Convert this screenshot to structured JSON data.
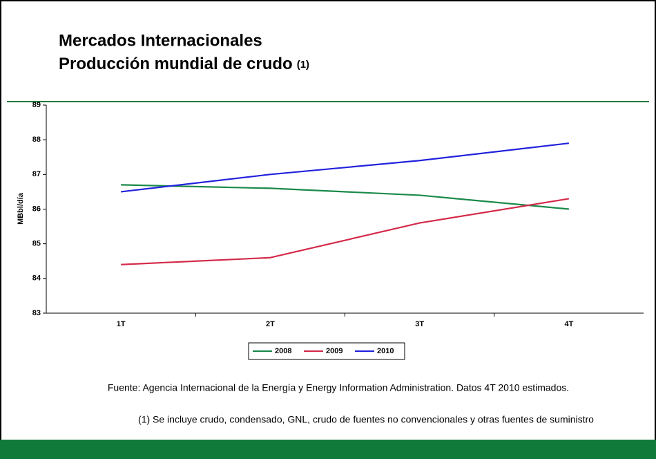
{
  "chart_data": {
    "type": "line",
    "title": "Mercados Internacionales",
    "subtitle": "Producción mundial de crudo",
    "subtitle_note": "(1)",
    "y_label": "MBbl/día",
    "categories": [
      "1T",
      "2T",
      "3T",
      "4T"
    ],
    "series": [
      {
        "name": "2008",
        "color": "#1a8a4a",
        "values": [
          86.7,
          86.6,
          86.4,
          86.0
        ]
      },
      {
        "name": "2009",
        "color": "#d42a4a",
        "values": [
          84.4,
          84.6,
          85.6,
          86.3
        ]
      },
      {
        "name": "2010",
        "color": "#2222dd",
        "values": [
          86.5,
          87.0,
          87.4,
          87.9
        ]
      }
    ],
    "ylim": [
      83,
      89
    ],
    "yticks": [
      83,
      84,
      85,
      86,
      87,
      88,
      89
    ],
    "grid": false,
    "legend": "bottom",
    "source": "Fuente: Agencia Internacional de la Energía y Energy Information Administration. Datos 4T 2010 estimados.",
    "footnote": "(1) Se incluye crudo, condensado, GNL, crudo de fuentes no convencionales y otras fuentes de suministro"
  }
}
